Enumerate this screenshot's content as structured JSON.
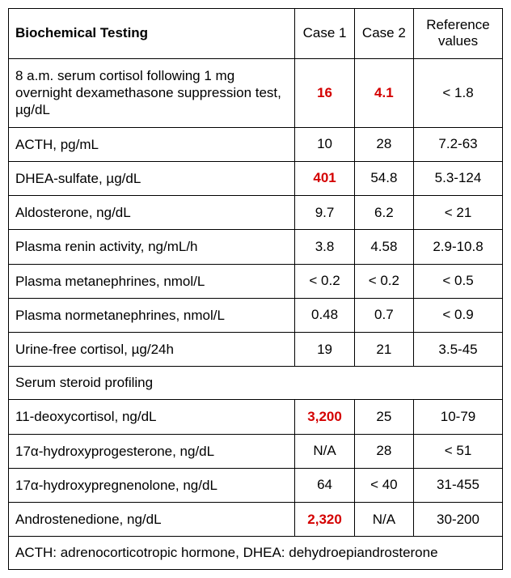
{
  "table": {
    "headers": {
      "testing": "Biochemical Testing",
      "case1": "Case 1",
      "case2": "Case 2",
      "reference": "Reference values"
    },
    "rows": [
      {
        "name": "8 a.m. serum cortisol following 1 mg overnight dexamethasone suppression test, µg/dL",
        "case1": "16",
        "case1_abnormal": true,
        "case2": "4.1",
        "case2_abnormal": true,
        "ref": "< 1.8"
      },
      {
        "name": "ACTH, pg/mL",
        "case1": "10",
        "case1_abnormal": false,
        "case2": "28",
        "case2_abnormal": false,
        "ref": "7.2-63"
      },
      {
        "name": "DHEA-sulfate, µg/dL",
        "case1": "401",
        "case1_abnormal": true,
        "case2": "54.8",
        "case2_abnormal": false,
        "ref": "5.3-124"
      },
      {
        "name": "Aldosterone, ng/dL",
        "case1": "9.7",
        "case1_abnormal": false,
        "case2": "6.2",
        "case2_abnormal": false,
        "ref": "< 21"
      },
      {
        "name": "Plasma renin activity, ng/mL/h",
        "case1": "3.8",
        "case1_abnormal": false,
        "case2": "4.58",
        "case2_abnormal": false,
        "ref": "2.9-10.8"
      },
      {
        "name": "Plasma metanephrines, nmol/L",
        "case1": "< 0.2",
        "case1_abnormal": false,
        "case2": "< 0.2",
        "case2_abnormal": false,
        "ref": "< 0.5"
      },
      {
        "name": "Plasma normetanephrines, nmol/L",
        "case1": "0.48",
        "case1_abnormal": false,
        "case2": "0.7",
        "case2_abnormal": false,
        "ref": "< 0.9"
      },
      {
        "name": "Urine-free cortisol, µg/24h",
        "case1": "19",
        "case1_abnormal": false,
        "case2": "21",
        "case2_abnormal": false,
        "ref": "3.5-45"
      }
    ],
    "section_header": "Serum steroid profiling",
    "section_rows": [
      {
        "name": "11-deoxycortisol, ng/dL",
        "case1": "3,200",
        "case1_abnormal": true,
        "case2": "25",
        "case2_abnormal": false,
        "ref": "10-79"
      },
      {
        "name": "17α-hydroxyprogesterone, ng/dL",
        "case1": "N/A",
        "case1_abnormal": false,
        "case2": "28",
        "case2_abnormal": false,
        "ref": "< 51"
      },
      {
        "name": "17α-hydroxypregnenolone, ng/dL",
        "case1": "64",
        "case1_abnormal": false,
        "case2": "< 40",
        "case2_abnormal": false,
        "ref": "31-455"
      },
      {
        "name": "Androstenedione, ng/dL",
        "case1": "2,320",
        "case1_abnormal": true,
        "case2": "N/A",
        "case2_abnormal": false,
        "ref": "30-200"
      }
    ],
    "footer": "ACTH: adrenocorticotropic hormone, DHEA: dehydroepiandrosterone",
    "colors": {
      "abnormal": "#d40000",
      "border": "#000000",
      "background": "#ffffff",
      "text": "#000000"
    }
  }
}
